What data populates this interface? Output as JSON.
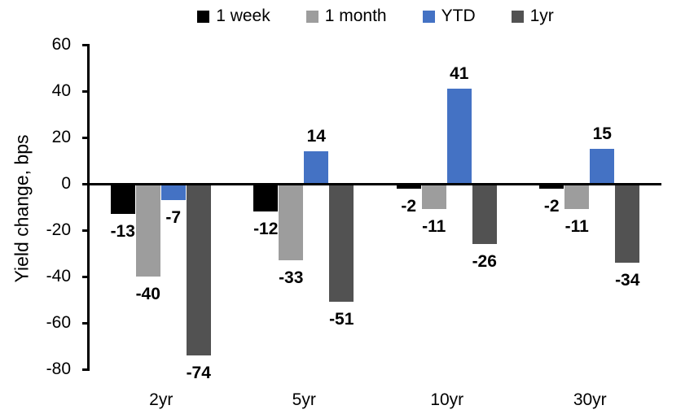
{
  "chart_data": {
    "type": "bar",
    "title": "",
    "ylabel": "Yield change, bps",
    "xlabel": "",
    "categories": [
      "2yr",
      "5yr",
      "10yr",
      "30yr"
    ],
    "series": [
      {
        "name": "1 week",
        "color": "#000000",
        "values": [
          -13,
          -12,
          -2,
          -2
        ]
      },
      {
        "name": "1 month",
        "color": "#9D9D9D",
        "values": [
          -40,
          -33,
          -11,
          -11
        ]
      },
      {
        "name": "YTD",
        "color": "#4472C4",
        "values": [
          -7,
          14,
          41,
          15
        ]
      },
      {
        "name": "1yr",
        "color": "#525252",
        "values": [
          -74,
          -51,
          -26,
          -34
        ]
      }
    ],
    "yticks": [
      60,
      40,
      20,
      0,
      -20,
      -40,
      -60,
      -80
    ],
    "ylim": [
      -80,
      60
    ],
    "grid": false,
    "legend_position": "top",
    "axis_color": "#000000",
    "data_labels": true
  }
}
